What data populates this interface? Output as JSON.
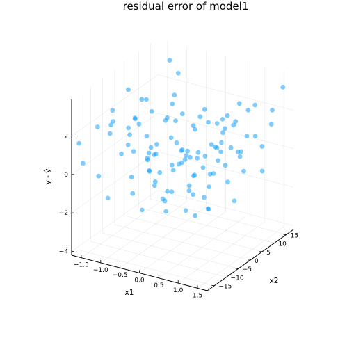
{
  "chart_data": {
    "type": "scatter",
    "title": "residual error of model1",
    "xlabel": "x1",
    "ylabel": "x2",
    "zlabel": "y - ŷ",
    "xticks": [
      "−1.5",
      "−1.0",
      "−0.5",
      "0.0",
      "0.5",
      "1.0",
      "1.5"
    ],
    "yticks": [
      "−15",
      "−10",
      "−5",
      "0",
      "5",
      "10",
      "15"
    ],
    "zticks": [
      "−4",
      "−2",
      "0",
      "2"
    ],
    "xlim": [
      -1.75,
      1.75
    ],
    "ylim": [
      -18,
      18
    ],
    "zlim": [
      -4.2,
      3.9
    ],
    "grid": true,
    "legend": "none",
    "marker_color": "#009AFA",
    "marker_opacity": 0.5,
    "points": [
      [
        -1.62,
        -17,
        1.6
      ],
      [
        -1.55,
        -16.5,
        0.55
      ],
      [
        -1.45,
        -12,
        2.1
      ],
      [
        -1.5,
        -6,
        1.2
      ],
      [
        -1.4,
        0,
        3.0
      ],
      [
        -1.3,
        4,
        2.2
      ],
      [
        -1.35,
        9,
        1.1
      ],
      [
        -1.2,
        14,
        3.4
      ],
      [
        -1.1,
        16,
        2.6
      ],
      [
        -1.52,
        10,
        -1.6
      ],
      [
        -1.3,
        -14,
        -0.2
      ],
      [
        -1.25,
        -9,
        2.8
      ],
      [
        -1.15,
        -4,
        1.5
      ],
      [
        -1.05,
        2,
        0.6
      ],
      [
        -1.1,
        7,
        -0.3
      ],
      [
        -0.95,
        12,
        1.9
      ],
      [
        -1.0,
        -15,
        -1.1
      ],
      [
        -0.9,
        -11,
        0.9
      ],
      [
        -0.85,
        -6,
        2.3
      ],
      [
        -0.8,
        -1,
        -0.8
      ],
      [
        -0.75,
        5,
        1.3
      ],
      [
        -0.7,
        11,
        -1.4
      ],
      [
        -0.65,
        15,
        0.2
      ],
      [
        -0.6,
        -13,
        1.7
      ],
      [
        -0.55,
        -8,
        -2.1
      ],
      [
        -0.5,
        -3,
        0.4
      ],
      [
        -0.45,
        3,
        2.5
      ],
      [
        -0.4,
        8,
        -0.6
      ],
      [
        -0.35,
        13,
        1.0
      ],
      [
        -0.3,
        -16,
        -0.4
      ],
      [
        -0.25,
        -10,
        1.2
      ],
      [
        -0.2,
        -5,
        -1.6
      ],
      [
        -0.15,
        0,
        0.9
      ],
      [
        -0.1,
        6,
        -2.3
      ],
      [
        -0.05,
        10,
        1.8
      ],
      [
        0.0,
        16,
        -0.9
      ],
      [
        0.05,
        -14,
        2.0
      ],
      [
        0.1,
        -9,
        -1.2
      ],
      [
        0.15,
        -4,
        0.3
      ],
      [
        0.2,
        2,
        1.6
      ],
      [
        0.25,
        7,
        -1.8
      ],
      [
        0.3,
        12,
        0.6
      ],
      [
        0.35,
        -12,
        -0.3
      ],
      [
        0.4,
        -7,
        1.4
      ],
      [
        0.45,
        -2,
        -2.4
      ],
      [
        0.5,
        4,
        0.8
      ],
      [
        0.55,
        9,
        -0.7
      ],
      [
        0.6,
        14,
        2.1
      ],
      [
        0.65,
        -15,
        0.1
      ],
      [
        0.7,
        -10,
        -1.3
      ],
      [
        0.75,
        -6,
        1.1
      ],
      [
        0.8,
        0,
        -0.2
      ],
      [
        0.85,
        5,
        2.4
      ],
      [
        0.9,
        11,
        -1.0
      ],
      [
        0.95,
        15,
        0.5
      ],
      [
        1.0,
        -13,
        1.9
      ],
      [
        1.05,
        -8,
        -0.6
      ],
      [
        1.1,
        -3,
        0.9
      ],
      [
        1.15,
        3,
        -1.7
      ],
      [
        1.2,
        8,
        2.6
      ],
      [
        1.25,
        13,
        0.3
      ],
      [
        1.3,
        -16,
        1.4
      ],
      [
        1.35,
        -11,
        -0.8
      ],
      [
        1.4,
        -5,
        2.9
      ],
      [
        1.45,
        1,
        1.2
      ],
      [
        1.5,
        6,
        3.2
      ],
      [
        1.55,
        12,
        1.7
      ],
      [
        1.6,
        16,
        3.3
      ],
      [
        1.6,
        -7,
        0.4
      ],
      [
        1.5,
        9,
        -0.5
      ],
      [
        -1.45,
        3,
        -0.5
      ],
      [
        -1.35,
        -8,
        1.9
      ],
      [
        -1.2,
        13,
        0.5
      ],
      [
        -1.05,
        -12,
        2.6
      ],
      [
        -0.95,
        4,
        -1.9
      ],
      [
        -0.85,
        9,
        0.0
      ],
      [
        -0.75,
        -3,
        3.1
      ],
      [
        -0.65,
        1,
        -1.0
      ],
      [
        -0.55,
        6,
        1.3
      ],
      [
        -0.45,
        -14,
        0.2
      ],
      [
        -0.35,
        -6,
        -0.9
      ],
      [
        -0.25,
        4,
        2.0
      ],
      [
        -0.15,
        9,
        -0.4
      ],
      [
        -0.05,
        -11,
        1.3
      ],
      [
        0.05,
        2,
        -1.4
      ],
      [
        0.15,
        12,
        1.0
      ],
      [
        0.25,
        -3,
        0.5
      ],
      [
        0.35,
        5,
        -2.7
      ],
      [
        0.45,
        14,
        0.9
      ],
      [
        0.55,
        -9,
        1.7
      ],
      [
        0.65,
        1,
        -0.4
      ],
      [
        0.75,
        10,
        1.6
      ],
      [
        0.85,
        -11,
        -0.1
      ],
      [
        0.95,
        -1,
        1.3
      ],
      [
        1.05,
        7,
        0.2
      ],
      [
        1.15,
        -14,
        1.1
      ],
      [
        1.25,
        -4,
        2.0
      ],
      [
        1.35,
        5,
        1.6
      ],
      [
        1.45,
        14,
        2.2
      ],
      [
        1.55,
        -2,
        1.5
      ],
      [
        -1.6,
        6,
        0.9
      ],
      [
        -1.0,
        -2,
        1.6
      ],
      [
        -0.6,
        -5,
        0.3
      ],
      [
        -0.2,
        14,
        0.7
      ],
      [
        0.2,
        -17,
        1.1
      ],
      [
        0.6,
        7,
        1.9
      ],
      [
        1.0,
        4,
        0.9
      ],
      [
        1.4,
        -9,
        2.3
      ],
      [
        -0.3,
        1,
        -0.7
      ],
      [
        0.1,
        -6,
        0.4
      ],
      [
        -0.8,
        15,
        -1.2
      ],
      [
        0.5,
        -15,
        -1.0
      ],
      [
        0.9,
        -6,
        0.7
      ],
      [
        -1.3,
        -1,
        0.8
      ],
      [
        1.2,
        -10,
        1.8
      ]
    ]
  }
}
